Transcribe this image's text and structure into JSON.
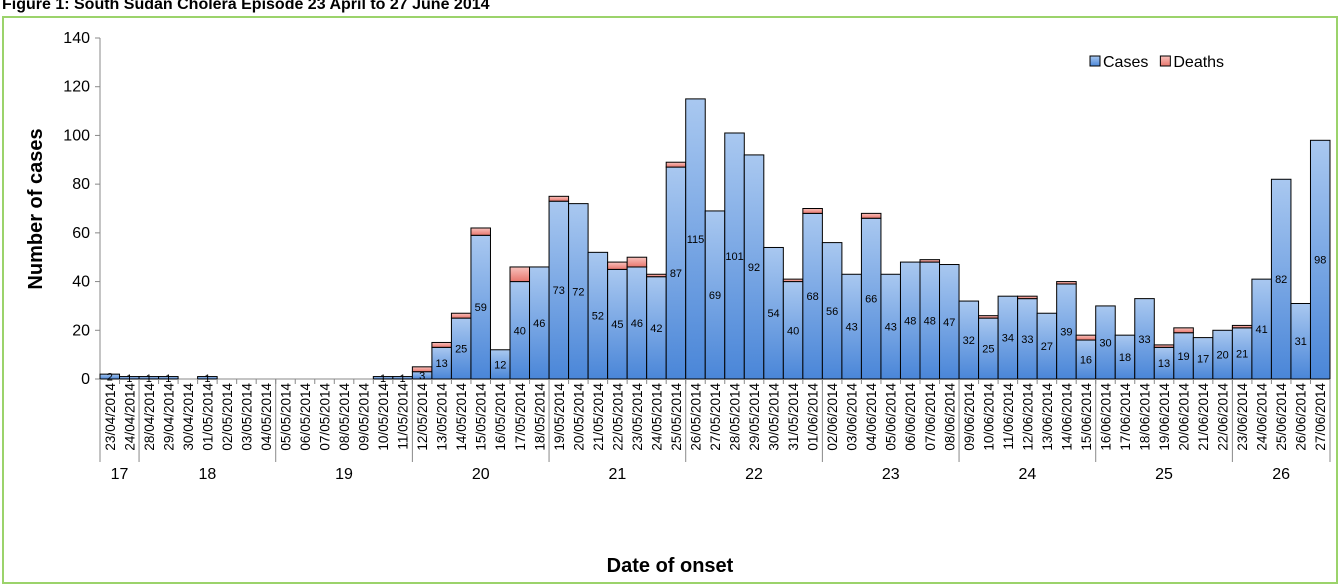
{
  "chart_data": {
    "type": "stacked-bar",
    "title": "Figure 1: South Sudan Cholera Episode 23 April to 27 June 2014",
    "x_label": "Date of onset",
    "y_label": "Number of cases",
    "categories": [
      "23/04/2014",
      "24/04/2014",
      "28/04/2014",
      "29/04/2014",
      "30/04/2014",
      "01/05/2014",
      "02/05/2014",
      "03/05/2014",
      "04/05/2014",
      "05/05/2014",
      "06/05/2014",
      "07/05/2014",
      "08/05/2014",
      "09/05/2014",
      "10/05/2014",
      "11/05/2014",
      "12/05/2014",
      "13/05/2014",
      "14/05/2014",
      "15/05/2014",
      "16/05/2014",
      "17/05/2014",
      "18/05/2014",
      "19/05/2014",
      "20/05/2014",
      "21/05/2014",
      "22/05/2014",
      "23/05/2014",
      "24/05/2014",
      "25/05/2014",
      "26/05/2014",
      "27/05/2014",
      "28/05/2014",
      "29/05/2014",
      "30/05/2014",
      "31/05/2014",
      "01/06/2014",
      "02/06/2014",
      "03/06/2014",
      "04/06/2014",
      "05/06/2014",
      "06/06/2014",
      "07/06/2014",
      "08/06/2014",
      "09/06/2014",
      "10/06/2014",
      "11/06/2014",
      "12/06/2014",
      "13/06/2014",
      "14/06/2014",
      "15/06/2014",
      "16/06/2014",
      "17/06/2014",
      "18/06/2014",
      "19/06/2014",
      "20/06/2014",
      "21/06/2014",
      "22/06/2014",
      "23/06/2014",
      "24/06/2014",
      "25/06/2014",
      "26/06/2014",
      "27/06/2014"
    ],
    "weeks": [
      "17",
      "17",
      "18",
      "18",
      "18",
      "18",
      "18",
      "18",
      "18",
      "19",
      "19",
      "19",
      "19",
      "19",
      "19",
      "19",
      "20",
      "20",
      "20",
      "20",
      "20",
      "20",
      "20",
      "21",
      "21",
      "21",
      "21",
      "21",
      "21",
      "21",
      "22",
      "22",
      "22",
      "22",
      "22",
      "22",
      "22",
      "23",
      "23",
      "23",
      "23",
      "23",
      "23",
      "23",
      "24",
      "24",
      "24",
      "24",
      "24",
      "24",
      "24",
      "25",
      "25",
      "25",
      "25",
      "25",
      "25",
      "25",
      "26",
      "26",
      "26",
      "26",
      "26"
    ],
    "series": [
      {
        "name": "Cases",
        "color": "#6a9de0",
        "values": [
          2,
          1,
          1,
          1,
          0,
          1,
          0,
          0,
          0,
          0,
          0,
          0,
          0,
          0,
          1,
          1,
          3,
          13,
          25,
          59,
          12,
          40,
          46,
          73,
          72,
          52,
          45,
          46,
          42,
          87,
          115,
          69,
          101,
          92,
          54,
          40,
          68,
          56,
          43,
          66,
          43,
          48,
          48,
          47,
          32,
          25,
          34,
          33,
          27,
          39,
          16,
          30,
          18,
          33,
          13,
          19,
          17,
          20,
          21,
          41,
          82,
          31,
          98
        ]
      },
      {
        "name": "Deaths",
        "color": "#f09a92",
        "values": [
          0,
          0,
          0,
          0,
          0,
          0,
          0,
          0,
          0,
          0,
          0,
          0,
          0,
          0,
          0,
          0,
          2,
          2,
          2,
          3,
          0,
          6,
          0,
          2,
          0,
          0,
          3,
          4,
          1,
          2,
          0,
          0,
          0,
          0,
          0,
          1,
          2,
          0,
          0,
          2,
          0,
          0,
          1,
          0,
          0,
          1,
          0,
          1,
          0,
          1,
          2,
          0,
          0,
          0,
          1,
          2,
          0,
          0,
          1,
          0,
          0,
          0,
          0
        ]
      }
    ],
    "ylim": [
      0,
      140
    ],
    "yticks": [
      0,
      20,
      40,
      60,
      80,
      100,
      120,
      140
    ],
    "legend": "top-right",
    "grid": false
  }
}
